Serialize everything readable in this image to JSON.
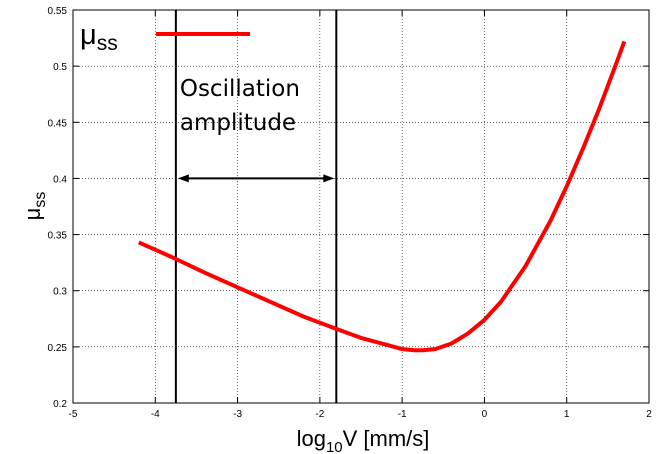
{
  "chart_data": {
    "type": "line",
    "xlabel": {
      "base": "log",
      "sub": "10",
      "rest": "V [mm/s]"
    },
    "ylabel": {
      "base": "μ",
      "sub": "ss"
    },
    "xlim": [
      -5,
      2
    ],
    "ylim": [
      0.2,
      0.55
    ],
    "xticks": [
      -5,
      -4,
      -3,
      -2,
      -1,
      0,
      1,
      2
    ],
    "yticks": [
      0.2,
      0.25,
      0.3,
      0.35,
      0.4,
      0.45,
      0.5,
      0.55
    ],
    "grid": true,
    "legend": {
      "placement": "top-left",
      "label_base": "μ",
      "label_sub": "ss",
      "color": "#ff0000"
    },
    "series": [
      {
        "color": "#ff0000",
        "x": [
          -4.2,
          -3.8,
          -3.4,
          -3.0,
          -2.6,
          -2.2,
          -1.8,
          -1.5,
          -1.2,
          -1.0,
          -0.85,
          -0.75,
          -0.6,
          -0.4,
          -0.2,
          0.0,
          0.2,
          0.5,
          0.8,
          1.0,
          1.2,
          1.4,
          1.6,
          1.7
        ],
        "y": [
          0.343,
          0.33,
          0.316,
          0.303,
          0.29,
          0.277,
          0.266,
          0.258,
          0.252,
          0.248,
          0.247,
          0.247,
          0.248,
          0.253,
          0.262,
          0.274,
          0.29,
          0.322,
          0.362,
          0.393,
          0.427,
          0.463,
          0.502,
          0.522
        ]
      }
    ],
    "vlines": [
      -3.75,
      -1.8
    ],
    "annotation": {
      "lines": [
        "Oscillation",
        "amplitude"
      ],
      "arrow": {
        "x_from": -3.75,
        "x_to": -1.8,
        "y": 0.4
      }
    }
  }
}
